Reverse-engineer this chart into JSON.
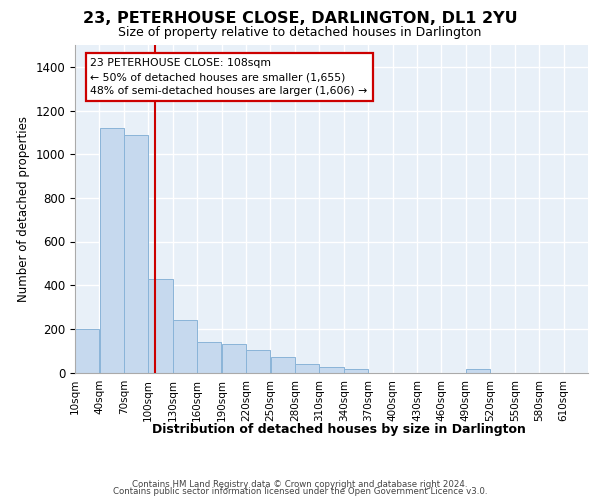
{
  "title": "23, PETERHOUSE CLOSE, DARLINGTON, DL1 2YU",
  "subtitle": "Size of property relative to detached houses in Darlington",
  "xlabel": "Distribution of detached houses by size in Darlington",
  "ylabel": "Number of detached properties",
  "bar_color": "#c6d9ee",
  "bar_edge_color": "#8ab4d8",
  "background_color": "#e8f0f8",
  "grid_color": "#ffffff",
  "red_line_x": 108,
  "annotation_line1": "23 PETERHOUSE CLOSE: 108sqm",
  "annotation_line2": "← 50% of detached houses are smaller (1,655)",
  "annotation_line3": "48% of semi-detached houses are larger (1,606) →",
  "annotation_box_color": "#ffffff",
  "annotation_border_color": "#cc0000",
  "footer_line1": "Contains HM Land Registry data © Crown copyright and database right 2024.",
  "footer_line2": "Contains public sector information licensed under the Open Government Licence v3.0.",
  "bin_width": 30,
  "bin_starts": [
    10,
    40,
    70,
    100,
    130,
    160,
    190,
    220,
    250,
    280,
    310,
    340,
    370,
    400,
    430,
    460,
    490,
    520,
    550,
    580,
    610
  ],
  "bar_heights": [
    200,
    1120,
    1090,
    430,
    240,
    140,
    130,
    105,
    70,
    38,
    25,
    18,
    0,
    0,
    0,
    0,
    18,
    0,
    0,
    0,
    0
  ],
  "ylim": [
    0,
    1500
  ],
  "yticks": [
    0,
    200,
    400,
    600,
    800,
    1000,
    1200,
    1400
  ],
  "tick_labels": [
    "10sqm",
    "40sqm",
    "70sqm",
    "100sqm",
    "130sqm",
    "160sqm",
    "190sqm",
    "220sqm",
    "250sqm",
    "280sqm",
    "310sqm",
    "340sqm",
    "370sqm",
    "400sqm",
    "430sqm",
    "460sqm",
    "490sqm",
    "520sqm",
    "550sqm",
    "580sqm",
    "610sqm"
  ],
  "title_fontsize": 11.5,
  "subtitle_fontsize": 9.0,
  "ylabel_fontsize": 8.5,
  "xlabel_fontsize": 9.0,
  "ytick_fontsize": 8.5,
  "xtick_fontsize": 7.5,
  "annotation_fontsize": 7.8,
  "footer_fontsize": 6.2
}
